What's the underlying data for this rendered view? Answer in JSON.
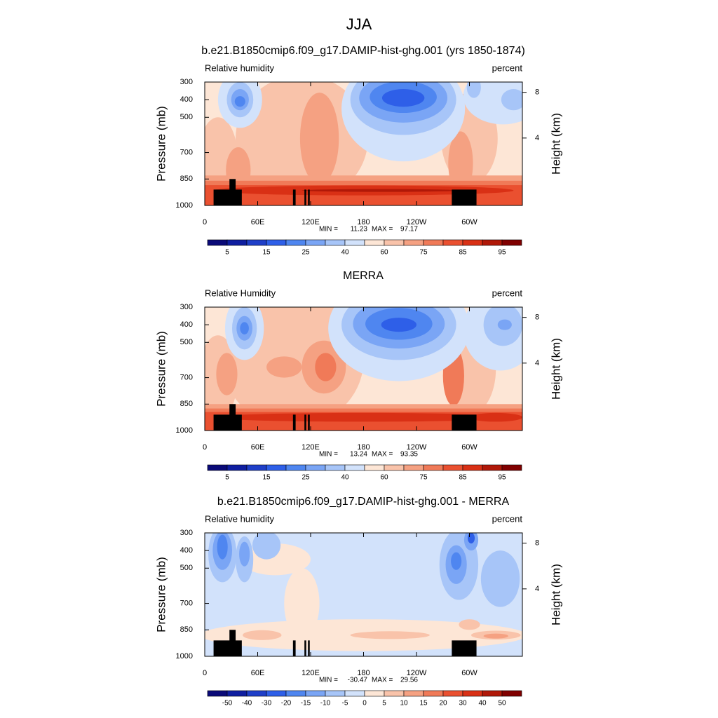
{
  "title": "JJA",
  "chart_data": [
    {
      "type": "contour",
      "field": "model",
      "title": "b.e21.B1850cmip6.f09_g17.DAMIP-hist-ghg.001 (yrs 1850-1874)",
      "left_label": "Relative humidity",
      "right_label": "percent",
      "ylabel": "Pressure (mb)",
      "y2label": "Height (km)",
      "xlim": [
        0,
        360
      ],
      "xticks": [
        0,
        {
          "value": 60,
          "label": "60E"
        },
        {
          "value": 120,
          "label": "120E"
        },
        180,
        {
          "value": 240,
          "label": "120W"
        },
        {
          "value": 300,
          "label": "60W"
        }
      ],
      "ylim": [
        1000,
        300
      ],
      "yticks": [
        300,
        400,
        500,
        700,
        850,
        1000
      ],
      "y2lim": [
        -1.9,
        8.9
      ],
      "y2ticks": [
        4,
        8
      ],
      "min_label": "MIN =",
      "min": 11.23,
      "max_label": "MAX =",
      "max": 97.17,
      "colorbar": {
        "levels": [
          5,
          15,
          25,
          40,
          60,
          75,
          85,
          95
        ],
        "colors": [
          "#0a0a78",
          "#0f1ea0",
          "#1f3fc8",
          "#2e5fe8",
          "#4f86f0",
          "#7aa5f5",
          "#a7c5f8",
          "#d2e2fb",
          "#fde6d6",
          "#f9c3aa",
          "#f5a182",
          "#f07a58",
          "#ea5030",
          "#d93015",
          "#b01808",
          "#800000"
        ]
      }
    },
    {
      "type": "contour",
      "field": "obs",
      "title": "MERRA",
      "left_label": "Relative Humidity",
      "right_label": "percent",
      "ylabel": "Pressure (mb)",
      "y2label": "Height (km)",
      "xlim": [
        0,
        360
      ],
      "xticks": [
        0,
        {
          "value": 60,
          "label": "60E"
        },
        {
          "value": 120,
          "label": "120E"
        },
        180,
        {
          "value": 240,
          "label": "120W"
        },
        {
          "value": 300,
          "label": "60W"
        }
      ],
      "ylim": [
        1000,
        300
      ],
      "yticks": [
        300,
        400,
        500,
        700,
        850,
        1000
      ],
      "y2lim": [
        -1.9,
        8.9
      ],
      "y2ticks": [
        4,
        8
      ],
      "min_label": "MIN =",
      "min": 13.24,
      "max_label": "MAX =",
      "max": 93.35,
      "colorbar": {
        "levels": [
          5,
          15,
          25,
          40,
          60,
          75,
          85,
          95
        ],
        "colors": [
          "#0a0a78",
          "#0f1ea0",
          "#1f3fc8",
          "#2e5fe8",
          "#4f86f0",
          "#7aa5f5",
          "#a7c5f8",
          "#d2e2fb",
          "#fde6d6",
          "#f9c3aa",
          "#f5a182",
          "#f07a58",
          "#ea5030",
          "#d93015",
          "#b01808",
          "#800000"
        ]
      }
    },
    {
      "type": "contour",
      "field": "diff",
      "title": "b.e21.B1850cmip6.f09_g17.DAMIP-hist-ghg.001 - MERRA",
      "left_label": "Relative humidity",
      "right_label": "percent",
      "ylabel": "Pressure (mb)",
      "y2label": "Height (km)",
      "xlim": [
        0,
        360
      ],
      "xticks": [
        0,
        {
          "value": 60,
          "label": "60E"
        },
        {
          "value": 120,
          "label": "120E"
        },
        180,
        {
          "value": 240,
          "label": "120W"
        },
        {
          "value": 300,
          "label": "60W"
        }
      ],
      "ylim": [
        1000,
        300
      ],
      "yticks": [
        300,
        400,
        500,
        700,
        850,
        1000
      ],
      "y2lim": [
        -1.9,
        8.9
      ],
      "y2ticks": [
        4,
        8
      ],
      "min_label": "MIN =",
      "min": -30.47,
      "max_label": "MAX =",
      "max": 29.56,
      "colorbar": {
        "levels": [
          -50,
          -40,
          -30,
          -20,
          -15,
          -10,
          -5,
          0,
          5,
          10,
          15,
          20,
          30,
          40,
          50
        ],
        "colors": [
          "#0a0a78",
          "#0f1ea0",
          "#1f3fc8",
          "#2e5fe8",
          "#4f86f0",
          "#7aa5f5",
          "#a7c5f8",
          "#d2e2fb",
          "#fde6d6",
          "#f9c3aa",
          "#f5a182",
          "#f07a58",
          "#ea5030",
          "#d93015",
          "#b01808",
          "#800000"
        ]
      }
    }
  ]
}
